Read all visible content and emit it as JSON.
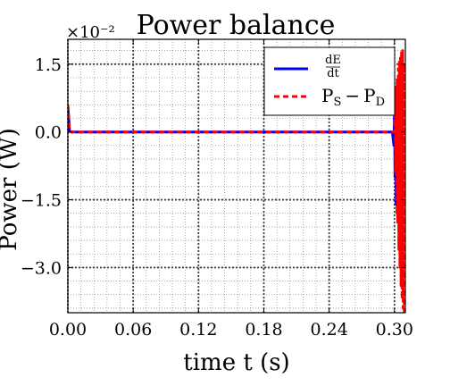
{
  "chart_data": {
    "type": "line",
    "title": "Power balance",
    "xlabel": "time t (s)",
    "ylabel": "Power (W)",
    "y_multiplier": "×10⁻²",
    "xlim": [
      0.0,
      0.31
    ],
    "ylim": [
      -4.0,
      2.05
    ],
    "xticks": [
      0.0,
      0.06,
      0.12,
      0.18,
      0.24,
      0.3
    ],
    "xtick_labels": [
      "0.00",
      "0.06",
      "0.12",
      "0.18",
      "0.24",
      "0.30"
    ],
    "yticks": [
      1.5,
      0.0,
      -1.5,
      -3.0
    ],
    "ytick_labels": [
      "1.5",
      "0.0",
      "−1.5",
      "−3.0"
    ],
    "grid": true,
    "legend_position": "top-right",
    "legend": {
      "dEdt_num": "dE",
      "dEdt_den": "dt",
      "ps_pd_p1": "P",
      "ps_pd_s": "S",
      "ps_pd_minus": "−",
      "ps_pd_p2": "P",
      "ps_pd_d": "D"
    },
    "series": [
      {
        "key": "dEdt",
        "style": "solid",
        "color": "#0000ff",
        "x": [
          0.0,
          0.0008,
          0.0015,
          0.003,
          0.05,
          0.1,
          0.15,
          0.2,
          0.25,
          0.298,
          0.2995,
          0.3,
          0.3005,
          0.301,
          0.3015,
          0.302,
          0.3025,
          0.303,
          0.3035,
          0.304,
          0.3045,
          0.305,
          0.3055,
          0.306,
          0.3065,
          0.307
        ],
        "y": [
          0.55,
          0.3,
          0.02,
          0.0,
          0.0,
          0.0,
          0.0,
          0.0,
          0.0,
          0.0,
          -0.3,
          0.5,
          -1.0,
          0.8,
          -1.6,
          1.0,
          -1.8,
          0.9,
          -1.4,
          0.6,
          -1.1,
          0.7,
          -0.8,
          0.4,
          -0.5,
          0.2
        ]
      },
      {
        "key": "ps_pd",
        "style": "dashed",
        "color": "#ff0000",
        "x": [
          0.0,
          0.0008,
          0.0015,
          0.003,
          0.05,
          0.1,
          0.15,
          0.2,
          0.25,
          0.3,
          0.3005,
          0.301,
          0.3015,
          0.302,
          0.3025,
          0.303,
          0.3035,
          0.304,
          0.3045,
          0.305,
          0.3055,
          0.306,
          0.3065,
          0.307,
          0.3075,
          0.308,
          0.3085,
          0.309
        ],
        "y": [
          0.6,
          0.3,
          0.02,
          0.0,
          0.0,
          0.0,
          0.0,
          0.0,
          0.0,
          0.0,
          0.6,
          -0.9,
          1.0,
          -1.5,
          1.2,
          -2.0,
          1.4,
          -2.6,
          1.6,
          -3.0,
          1.7,
          -3.4,
          1.8,
          -3.7,
          1.8,
          -3.9,
          1.5,
          -4.0
        ]
      }
    ]
  }
}
